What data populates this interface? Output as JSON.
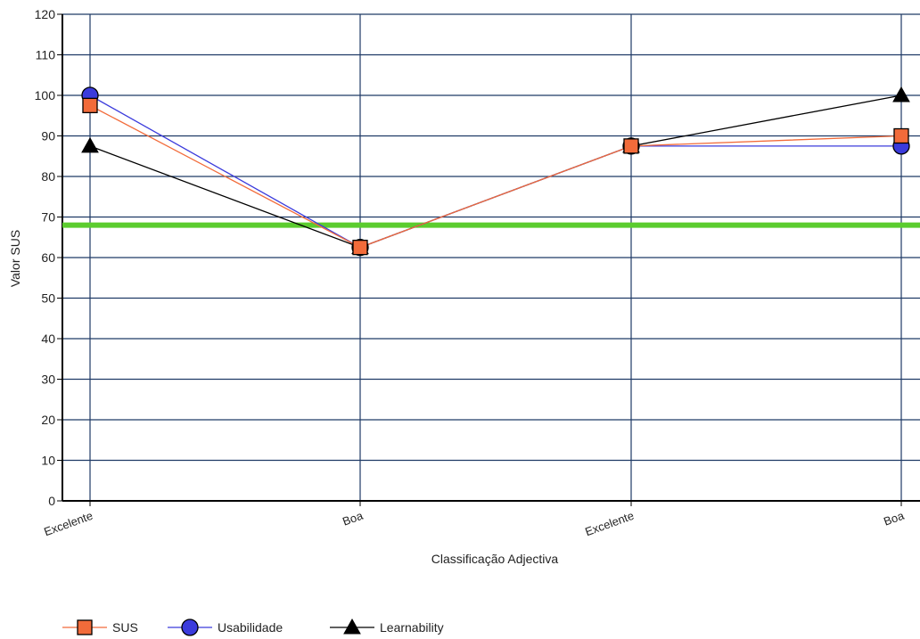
{
  "chart_data": {
    "type": "line",
    "xlabel": "Classificação Adjectiva",
    "ylabel": "Valor SUS",
    "categories": [
      "Excelente",
      "Boa",
      "Excelente",
      "Boa"
    ],
    "ylim": [
      0,
      120
    ],
    "yticks": [
      0,
      10,
      20,
      30,
      40,
      50,
      60,
      70,
      80,
      90,
      100,
      110,
      120
    ],
    "grid": true,
    "reference_line": {
      "value": 68,
      "color": "#5bcc2e"
    },
    "legend_position": "bottom-left",
    "series": [
      {
        "name": "SUS",
        "values": [
          97.5,
          62.5,
          87.5,
          90
        ],
        "color": "#f26b3a",
        "marker": "square"
      },
      {
        "name": "Usabilidade",
        "values": [
          100,
          62.5,
          87.5,
          87.5
        ],
        "color": "#3b3bdc",
        "marker": "circle"
      },
      {
        "name": "Learnability",
        "values": [
          87.5,
          62.5,
          87.5,
          100
        ],
        "color": "#000000",
        "marker": "triangle"
      }
    ]
  }
}
